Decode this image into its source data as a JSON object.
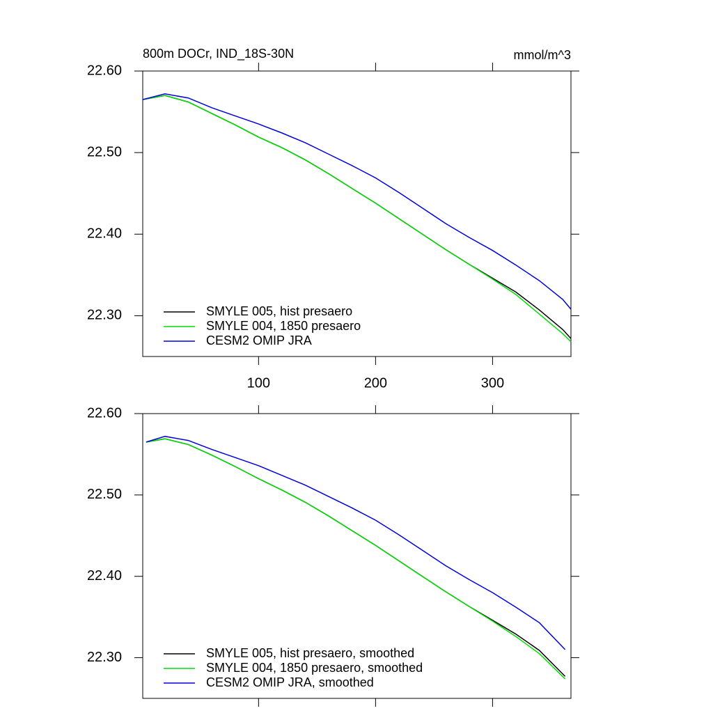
{
  "chart_data": [
    {
      "type": "line",
      "title": "800m DOCr, IND_18S-30N",
      "right_title": "mmol/m^3",
      "x": [
        1,
        20,
        40,
        60,
        80,
        100,
        120,
        140,
        160,
        180,
        200,
        220,
        240,
        260,
        280,
        300,
        320,
        340,
        360,
        367
      ],
      "series": [
        {
          "name": "SMYLE 005, hist presaero",
          "color": "#000000",
          "values": [
            22.565,
            22.57,
            22.562,
            22.548,
            22.534,
            22.519,
            22.506,
            22.491,
            22.474,
            22.456,
            22.438,
            22.419,
            22.4,
            22.381,
            22.363,
            22.346,
            22.329,
            22.307,
            22.283,
            22.272
          ]
        },
        {
          "name": "SMYLE 004, 1850 presaero",
          "color": "#00dd00",
          "values": [
            22.565,
            22.57,
            22.562,
            22.548,
            22.534,
            22.519,
            22.506,
            22.491,
            22.474,
            22.456,
            22.438,
            22.419,
            22.4,
            22.381,
            22.363,
            22.345,
            22.326,
            22.302,
            22.278,
            22.268
          ]
        },
        {
          "name": "CESM2 OMIP JRA",
          "color": "#0000dd",
          "values": [
            22.565,
            22.572,
            22.567,
            22.555,
            22.545,
            22.535,
            22.524,
            22.512,
            22.498,
            22.484,
            22.469,
            22.451,
            22.432,
            22.413,
            22.396,
            22.38,
            22.362,
            22.343,
            22.32,
            22.308
          ]
        }
      ],
      "xlim": [
        1,
        367
      ],
      "xticks": [
        100,
        200,
        300
      ],
      "show_xtick_labels": true,
      "ylim": [
        22.25,
        22.6
      ],
      "yticks": [
        {
          "value": 22.3,
          "label": "22.30"
        },
        {
          "value": 22.4,
          "label": "22.40"
        },
        {
          "value": 22.5,
          "label": "22.50"
        },
        {
          "value": 22.6,
          "label": "22.60"
        }
      ],
      "legend": "lower left"
    },
    {
      "type": "line",
      "x": [
        4,
        20,
        40,
        60,
        80,
        100,
        120,
        140,
        160,
        180,
        200,
        220,
        240,
        260,
        280,
        300,
        320,
        340,
        362
      ],
      "series": [
        {
          "name": "SMYLE 005, hist presaero, smoothed",
          "color": "#000000",
          "values": [
            22.565,
            22.569,
            22.562,
            22.549,
            22.535,
            22.52,
            22.506,
            22.491,
            22.474,
            22.456,
            22.438,
            22.419,
            22.4,
            22.381,
            22.363,
            22.346,
            22.329,
            22.309,
            22.277
          ]
        },
        {
          "name": "SMYLE 004, 1850 presaero, smoothed",
          "color": "#00dd00",
          "values": [
            22.565,
            22.569,
            22.562,
            22.549,
            22.535,
            22.52,
            22.506,
            22.491,
            22.474,
            22.456,
            22.438,
            22.419,
            22.4,
            22.381,
            22.363,
            22.345,
            22.326,
            22.305,
            22.274
          ]
        },
        {
          "name": "CESM2 OMIP JRA, smoothed",
          "color": "#0000dd",
          "values": [
            22.565,
            22.572,
            22.567,
            22.556,
            22.546,
            22.536,
            22.524,
            22.512,
            22.498,
            22.484,
            22.469,
            22.451,
            22.432,
            22.413,
            22.396,
            22.38,
            22.362,
            22.343,
            22.31
          ]
        }
      ],
      "xlim": [
        1,
        367
      ],
      "xticks": [
        100,
        200,
        300
      ],
      "show_xtick_labels": false,
      "ylim": [
        22.25,
        22.6
      ],
      "yticks": [
        {
          "value": 22.3,
          "label": "22.30"
        },
        {
          "value": 22.4,
          "label": "22.40"
        },
        {
          "value": 22.5,
          "label": "22.50"
        },
        {
          "value": 22.6,
          "label": "22.60"
        }
      ],
      "legend": "lower left"
    }
  ]
}
